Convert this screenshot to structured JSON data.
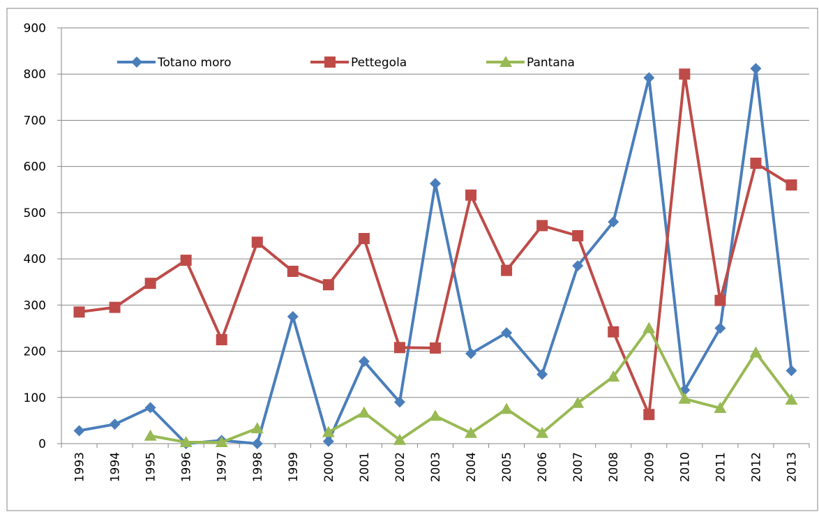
{
  "chart_data": {
    "type": "line",
    "categories": [
      "1993",
      "1994",
      "1995",
      "1996",
      "1997",
      "1998",
      "1999",
      "2000",
      "2001",
      "2002",
      "2003",
      "2004",
      "2005",
      "2006",
      "2007",
      "2008",
      "2009",
      "2010",
      "2011",
      "2012",
      "2013"
    ],
    "series": [
      {
        "name": "Totano moro",
        "color": "#4a7ebb",
        "marker": "diamond",
        "values": [
          28,
          42,
          78,
          0,
          7,
          0,
          275,
          5,
          178,
          90,
          563,
          195,
          240,
          150,
          385,
          480,
          792,
          116,
          250,
          812,
          158
        ]
      },
      {
        "name": "Pettegola",
        "color": "#be4b48",
        "marker": "square",
        "values": [
          285,
          295,
          347,
          397,
          225,
          436,
          373,
          344,
          444,
          208,
          207,
          538,
          375,
          472,
          450,
          242,
          63,
          800,
          310,
          607,
          560
        ]
      },
      {
        "name": "Pantana",
        "color": "#98b954",
        "marker": "triangle",
        "values": [
          null,
          null,
          17,
          3,
          3,
          33,
          null,
          25,
          67,
          8,
          60,
          23,
          75,
          23,
          88,
          145,
          250,
          97,
          77,
          197,
          95
        ]
      }
    ],
    "ylim": [
      0,
      900
    ],
    "yticks": [
      0,
      100,
      200,
      300,
      400,
      500,
      600,
      700,
      800,
      900
    ],
    "grid": true,
    "legend": "top"
  }
}
